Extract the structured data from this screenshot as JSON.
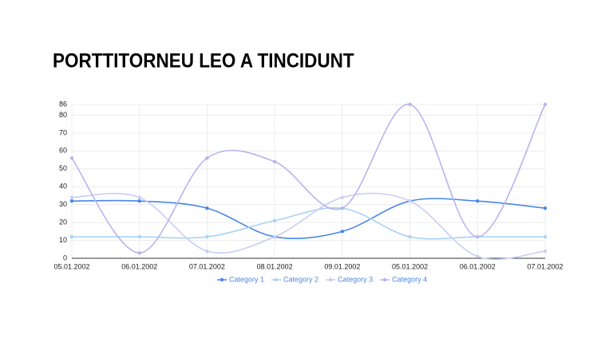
{
  "chart_data": {
    "type": "line",
    "title": "PORTTITORNEU LEO A TINCIDUNT",
    "categories": [
      "05.01.2002",
      "06.01.2002",
      "07.01.2002",
      "08.01.2002",
      "09.01.2002",
      "05.01.2002",
      "06.01.2002",
      "07.01.2002"
    ],
    "series": [
      {
        "name": "Category 1",
        "color": "#4a86e8",
        "values": [
          32,
          32,
          28,
          12,
          15,
          32,
          32,
          28
        ]
      },
      {
        "name": "Category 2",
        "color": "#a9d3f5",
        "values": [
          12,
          12,
          12,
          21,
          28,
          12,
          12,
          12
        ]
      },
      {
        "name": "Category 3",
        "color": "#c9cdf2",
        "values": [
          34,
          34,
          4,
          12,
          34,
          32,
          1,
          4
        ]
      },
      {
        "name": "Category 4",
        "color": "#b7b5ec",
        "values": [
          56,
          3,
          56,
          54,
          28,
          86,
          12,
          86
        ]
      }
    ],
    "ylim": [
      0,
      86
    ],
    "yticks": [
      0,
      10,
      20,
      30,
      40,
      50,
      60,
      70,
      80,
      86
    ],
    "grid": true,
    "legend": "bottom"
  }
}
